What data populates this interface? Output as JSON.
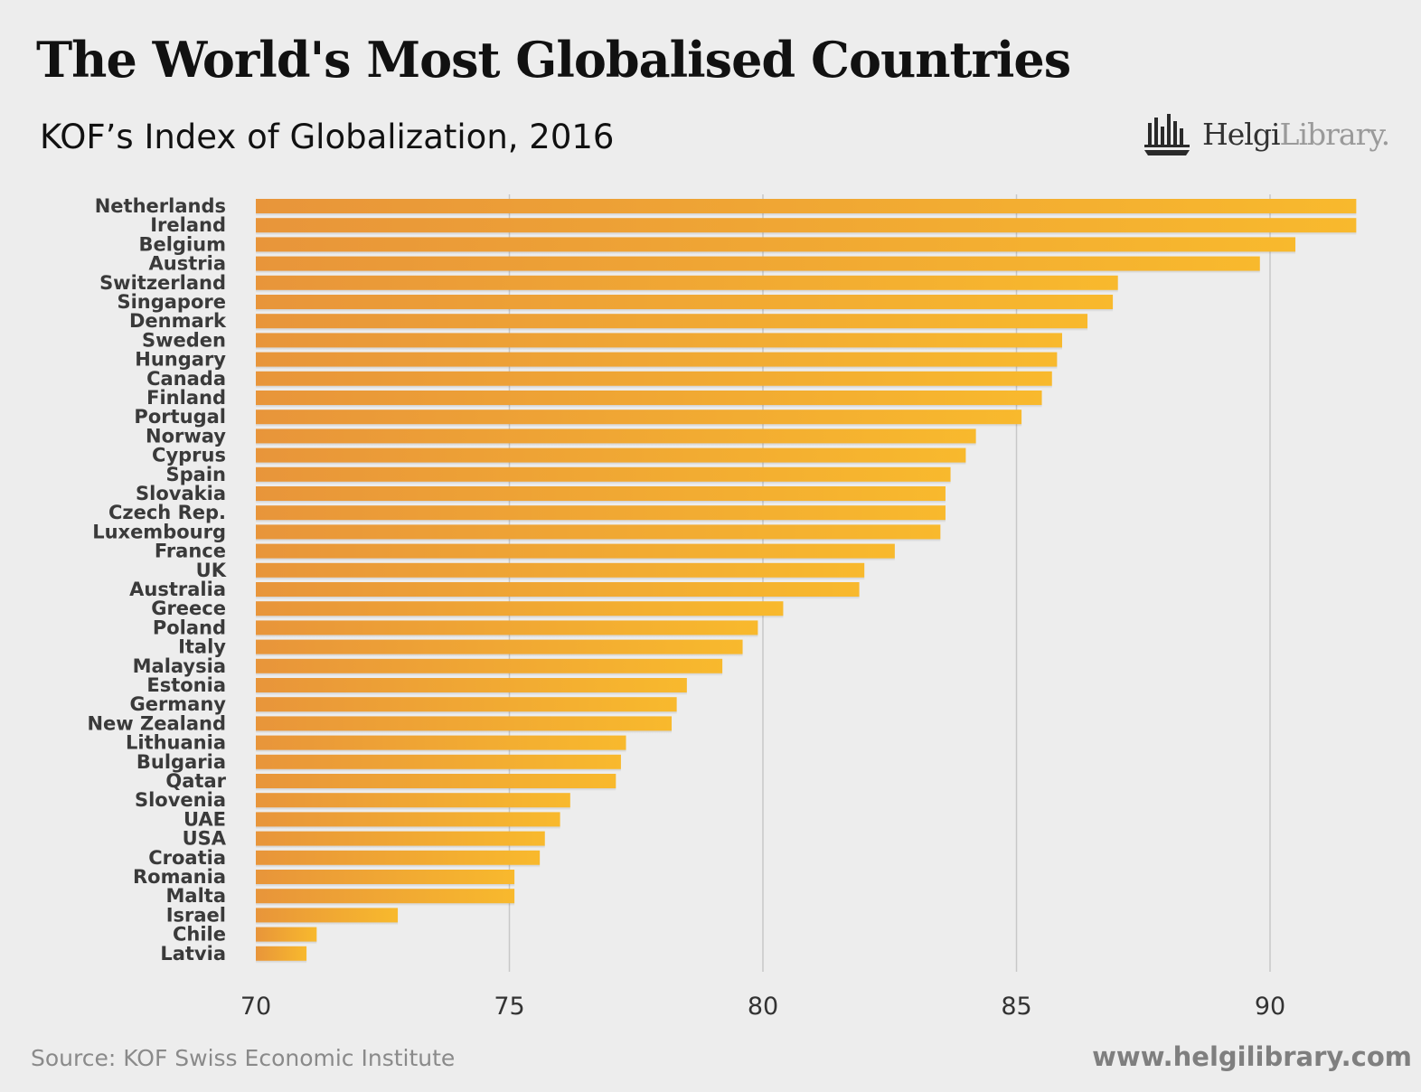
{
  "header": {
    "title": "The World's Most Globalised Countries",
    "subtitle": "KOF’s Index of Globalization, 2016"
  },
  "brand": {
    "name_bold": "Helgi",
    "name_light": "Library.",
    "icon": "library-logo-icon"
  },
  "footer": {
    "source": "Source:  KOF Swiss Economic Institute",
    "website": "www.helgilibrary.com"
  },
  "colors": {
    "background": "#ededed",
    "bar_start": "#e8953a",
    "bar_end": "#f8b92d",
    "gridline": "#c8c8c8",
    "label": "#3a3a3a"
  },
  "chart_data": {
    "type": "bar",
    "orientation": "horizontal",
    "title": "KOF’s Index of Globalization, 2016",
    "xlabel": "",
    "ylabel": "",
    "xlim": [
      70,
      92.5
    ],
    "xticks": [
      70,
      75,
      80,
      85,
      90
    ],
    "grid": true,
    "categories": [
      "Netherlands",
      "Ireland",
      "Belgium",
      "Austria",
      "Switzerland",
      "Singapore",
      "Denmark",
      "Sweden",
      "Hungary",
      "Canada",
      "Finland",
      "Portugal",
      "Norway",
      "Cyprus",
      "Spain",
      "Slovakia",
      "Czech Rep.",
      "Luxembourg",
      "France",
      "UK",
      "Australia",
      "Greece",
      "Poland",
      "Italy",
      "Malaysia",
      "Estonia",
      "Germany",
      "New Zealand",
      "Lithuania",
      "Bulgaria",
      "Qatar",
      "Slovenia",
      "UAE",
      "USA",
      "Croatia",
      "Romania",
      "Malta",
      "Israel",
      "Chile",
      "Latvia"
    ],
    "values": [
      91.7,
      91.7,
      90.5,
      89.8,
      87.0,
      86.9,
      86.4,
      85.9,
      85.8,
      85.7,
      85.5,
      85.1,
      84.2,
      84.0,
      83.7,
      83.6,
      83.6,
      83.5,
      82.6,
      82.0,
      81.9,
      80.4,
      79.9,
      79.6,
      79.2,
      78.5,
      78.3,
      78.2,
      77.3,
      77.2,
      77.1,
      76.2,
      76.0,
      75.7,
      75.6,
      75.1,
      75.1,
      72.8,
      71.2,
      71.0
    ]
  }
}
